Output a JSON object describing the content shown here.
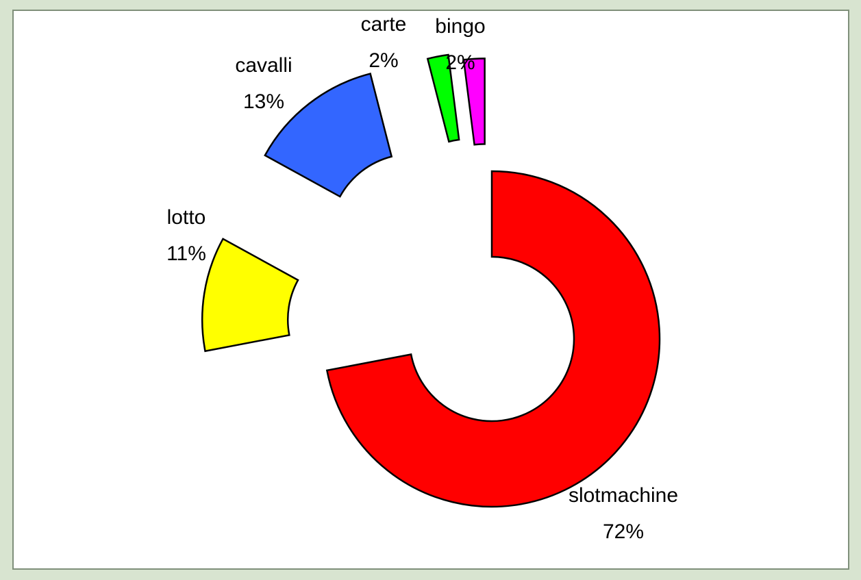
{
  "chart_data": {
    "type": "donut",
    "categories": [
      "slotmachine",
      "lotto",
      "cavalli",
      "carte",
      "bingo"
    ],
    "values": [
      72,
      11,
      13,
      2,
      2
    ],
    "value_labels": [
      "72%",
      "11%",
      "13%",
      "2%",
      "2%"
    ],
    "colors": [
      "#ff0000",
      "#ffff00",
      "#3366ff",
      "#00ff00",
      "#ff00ff"
    ]
  }
}
